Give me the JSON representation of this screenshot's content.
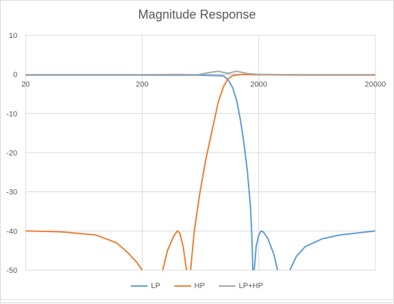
{
  "chart_data": {
    "type": "line",
    "title": "Magnitude Response",
    "xlabel": "",
    "ylabel": "",
    "x_scale": "log",
    "xlim": [
      20,
      20000
    ],
    "ylim": [
      -50,
      10
    ],
    "x_ticks": [
      20,
      200,
      2000,
      20000
    ],
    "y_ticks": [
      10,
      0,
      -10,
      -20,
      -30,
      -40,
      -50
    ],
    "grid": true,
    "legend_position": "bottom",
    "series": [
      {
        "name": "LP",
        "color": "#5b9bd5",
        "points": [
          [
            20,
            -0.2
          ],
          [
            100,
            -0.2
          ],
          [
            300,
            -0.2
          ],
          [
            600,
            -0.2
          ],
          [
            800,
            -0.3
          ],
          [
            1000,
            -0.4
          ],
          [
            1100,
            -1.5
          ],
          [
            1200,
            -3.5
          ],
          [
            1300,
            -7
          ],
          [
            1400,
            -12
          ],
          [
            1500,
            -18
          ],
          [
            1600,
            -25
          ],
          [
            1700,
            -34
          ],
          [
            1750,
            -42
          ],
          [
            1780,
            -50
          ]
        ],
        "points2": [
          [
            1830,
            -50
          ],
          [
            1900,
            -44
          ],
          [
            2000,
            -41
          ],
          [
            2100,
            -40
          ],
          [
            2200,
            -40.3
          ],
          [
            2400,
            -42
          ],
          [
            2700,
            -46
          ],
          [
            2900,
            -50
          ]
        ],
        "points3": [
          [
            3700,
            -50
          ],
          [
            4200,
            -46.5
          ],
          [
            5000,
            -44
          ],
          [
            7000,
            -42
          ],
          [
            10000,
            -41
          ],
          [
            20000,
            -40
          ]
        ]
      },
      {
        "name": "HP",
        "color": "#ed7d31",
        "points": [
          [
            20,
            -40
          ],
          [
            40,
            -40.2
          ],
          [
            80,
            -41
          ],
          [
            120,
            -43
          ],
          [
            150,
            -45.5
          ],
          [
            180,
            -48
          ],
          [
            200,
            -50
          ]
        ],
        "points2": [
          [
            300,
            -50
          ],
          [
            330,
            -45
          ],
          [
            370,
            -41.5
          ],
          [
            400,
            -40
          ],
          [
            420,
            -40.5
          ],
          [
            450,
            -44
          ],
          [
            480,
            -50
          ]
        ],
        "points3": [
          [
            520,
            -50
          ],
          [
            560,
            -40
          ],
          [
            620,
            -31
          ],
          [
            700,
            -22
          ],
          [
            800,
            -14
          ],
          [
            900,
            -7
          ],
          [
            1000,
            -3
          ],
          [
            1100,
            -1
          ],
          [
            1200,
            -0.3
          ],
          [
            1400,
            0
          ],
          [
            2000,
            -0.1
          ],
          [
            5000,
            -0.2
          ],
          [
            20000,
            -0.2
          ]
        ]
      },
      {
        "name": "LP+HP",
        "color": "#a5a5a5",
        "points": [
          [
            20,
            -0.1
          ],
          [
            200,
            -0.1
          ],
          [
            400,
            0
          ],
          [
            600,
            -0.1
          ],
          [
            700,
            0.3
          ],
          [
            800,
            0.6
          ],
          [
            900,
            0.8
          ],
          [
            1000,
            0.5
          ],
          [
            1100,
            0.3
          ],
          [
            1200,
            0.6
          ],
          [
            1300,
            0.8
          ],
          [
            1400,
            0.6
          ],
          [
            1600,
            0.2
          ],
          [
            2000,
            0
          ],
          [
            5000,
            -0.1
          ],
          [
            20000,
            -0.1
          ]
        ]
      }
    ]
  }
}
